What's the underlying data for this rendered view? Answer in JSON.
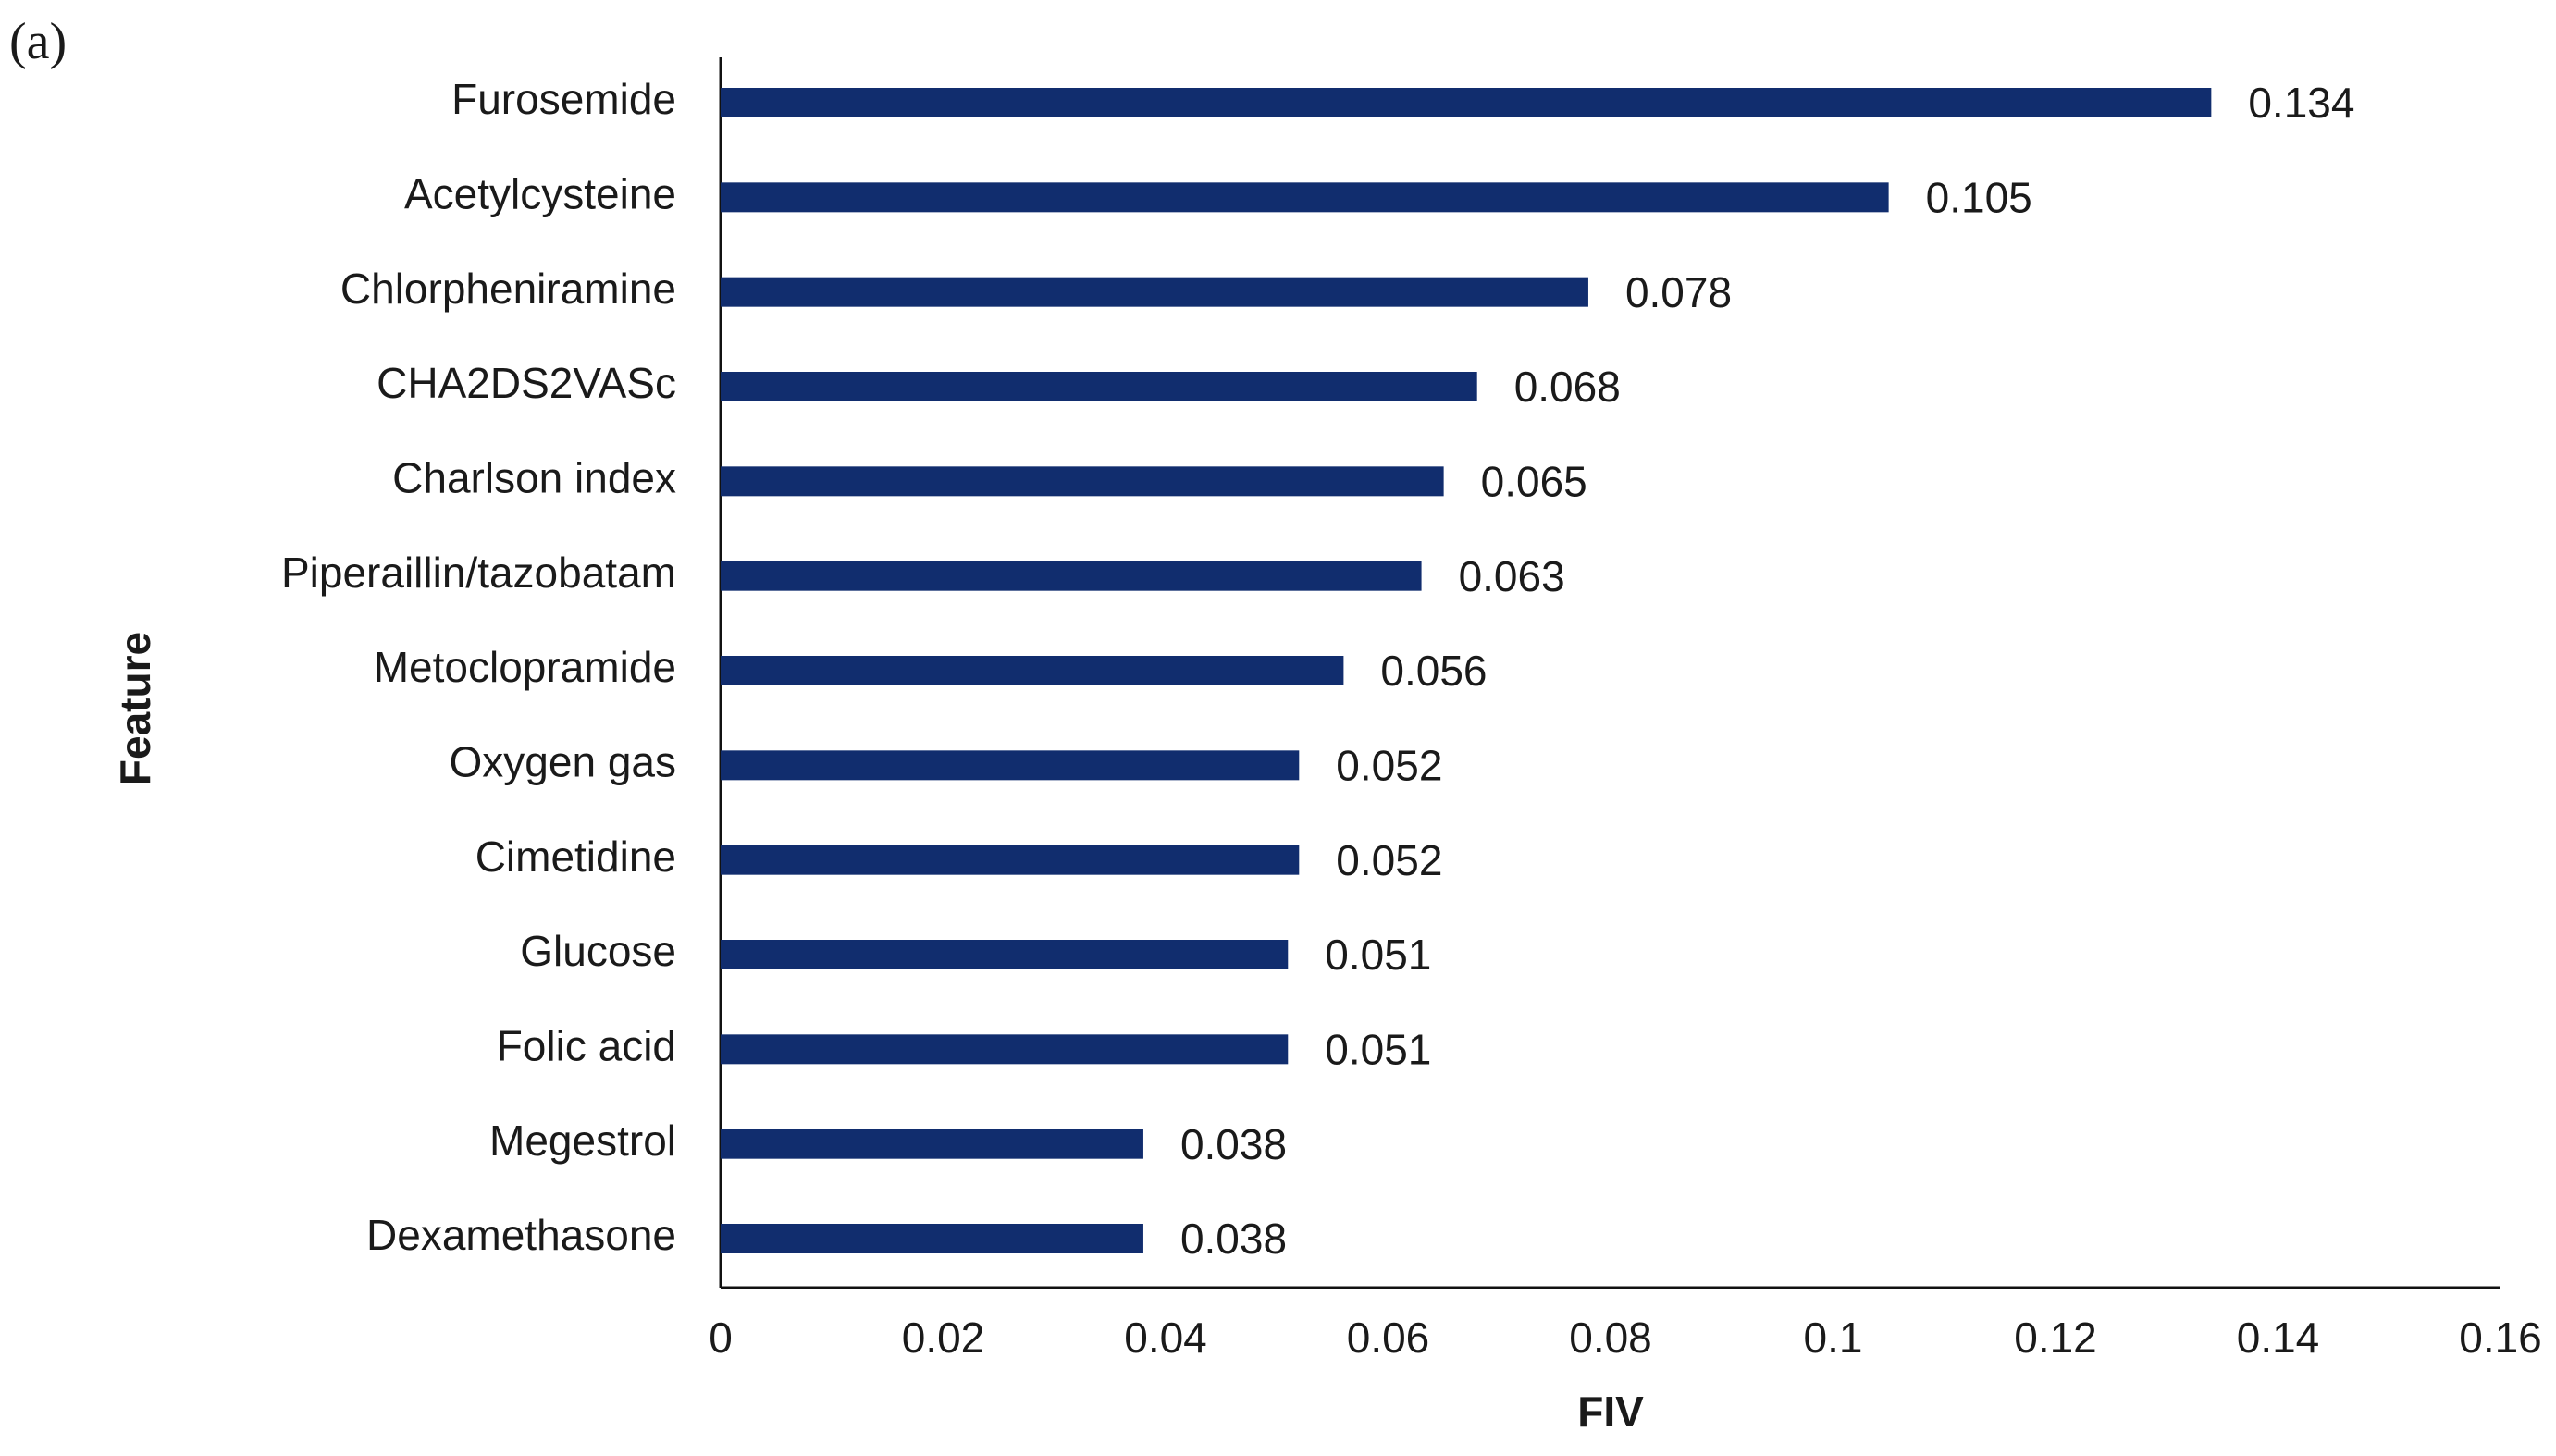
{
  "chart_data": {
    "type": "barh",
    "panel_label": "(a)",
    "xlabel": "FIV",
    "ylabel": "Feature",
    "categories": [
      "Furosemide",
      "Acetylcysteine",
      "Chlorpheniramine",
      "CHA2DS2VASc",
      "Charlson index",
      "Piperaillin/tazobatam",
      "Metoclopramide",
      "Oxygen gas",
      "Cimetidine",
      "Glucose",
      "Folic acid",
      "Megestrol",
      "Dexamethasone"
    ],
    "values": [
      0.134,
      0.105,
      0.078,
      0.068,
      0.065,
      0.063,
      0.056,
      0.052,
      0.052,
      0.051,
      0.051,
      0.038,
      0.038
    ],
    "color": "#112d6e",
    "xlim": [
      0,
      0.16
    ],
    "xticks": [
      0,
      0.02,
      0.04,
      0.06,
      0.08,
      0.1,
      0.12,
      0.14,
      0.16
    ],
    "grid": false
  }
}
